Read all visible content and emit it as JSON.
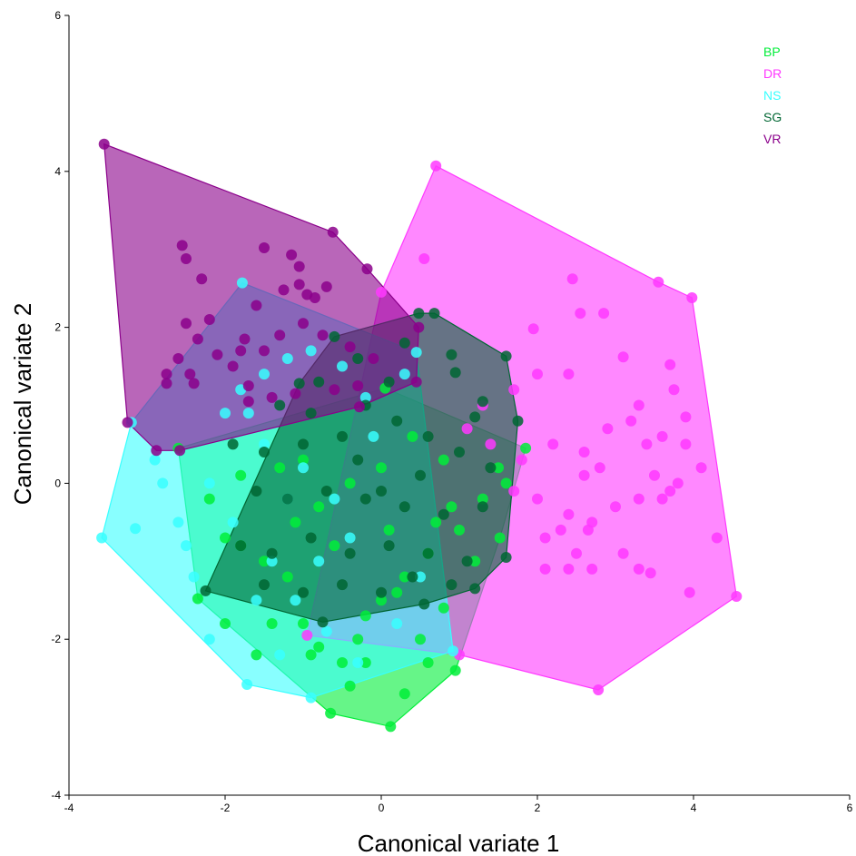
{
  "chart_data": {
    "type": "scatter",
    "title": "",
    "xlabel": "Canonical variate 1",
    "ylabel": "Canonical variate 2",
    "xlim": [
      -4,
      6
    ],
    "ylim": [
      -4,
      6
    ],
    "xticks": [
      -4,
      -2,
      0,
      2,
      4,
      6
    ],
    "yticks": [
      -4,
      -2,
      0,
      2,
      4,
      6
    ],
    "grid": false,
    "legend_position": "top-right",
    "series": [
      {
        "name": "BP",
        "color": "#00EE38",
        "hull": [
          [
            -2.6,
            0.45
          ],
          [
            0.05,
            1.22
          ],
          [
            1.85,
            0.45
          ],
          [
            1.52,
            -0.7
          ],
          [
            0.95,
            -2.4
          ],
          [
            0.12,
            -3.12
          ],
          [
            -0.65,
            -2.95
          ],
          [
            -2.35,
            -1.48
          ],
          [
            -2.6,
            0.45
          ]
        ],
        "points": [
          [
            -2.6,
            0.45
          ],
          [
            0.05,
            1.22
          ],
          [
            1.85,
            0.45
          ],
          [
            1.52,
            -0.7
          ],
          [
            0.95,
            -2.4
          ],
          [
            0.12,
            -3.12
          ],
          [
            -0.65,
            -2.95
          ],
          [
            -2.35,
            -1.48
          ],
          [
            -1.5,
            -1.0
          ],
          [
            -1.8,
            -0.8
          ],
          [
            -2.0,
            -0.7
          ],
          [
            -1.2,
            -1.2
          ],
          [
            -1.0,
            -1.8
          ],
          [
            -0.8,
            -2.1
          ],
          [
            -0.5,
            -2.3
          ],
          [
            -0.3,
            -2.0
          ],
          [
            0.0,
            -1.5
          ],
          [
            0.3,
            -1.2
          ],
          [
            0.6,
            -0.9
          ],
          [
            1.0,
            -0.6
          ],
          [
            1.3,
            -0.2
          ],
          [
            1.5,
            0.2
          ],
          [
            0.8,
            0.3
          ],
          [
            0.4,
            0.6
          ],
          [
            0.0,
            0.2
          ],
          [
            -0.4,
            0.0
          ],
          [
            -0.8,
            -0.3
          ],
          [
            -1.3,
            0.2
          ],
          [
            -1.8,
            0.1
          ],
          [
            -2.2,
            -0.2
          ],
          [
            -0.2,
            -1.7
          ],
          [
            0.5,
            -2.0
          ],
          [
            0.8,
            -1.6
          ],
          [
            -1.4,
            -1.8
          ],
          [
            -0.9,
            -2.2
          ],
          [
            -0.4,
            -2.6
          ],
          [
            0.3,
            -2.7
          ],
          [
            0.2,
            -1.4
          ],
          [
            0.9,
            -0.3
          ],
          [
            1.6,
            0.0
          ],
          [
            -2.0,
            -1.8
          ],
          [
            -1.6,
            -2.2
          ],
          [
            -1.1,
            -0.5
          ],
          [
            -0.6,
            -0.8
          ],
          [
            0.1,
            -0.6
          ],
          [
            0.7,
            -0.5
          ],
          [
            1.2,
            -1.0
          ],
          [
            -0.2,
            -2.3
          ],
          [
            0.6,
            -2.3
          ],
          [
            -1.0,
            0.3
          ]
        ]
      },
      {
        "name": "DR",
        "color": "#FF38FF",
        "hull": [
          [
            0.7,
            4.07
          ],
          [
            3.55,
            2.58
          ],
          [
            3.98,
            2.38
          ],
          [
            4.55,
            -1.45
          ],
          [
            2.78,
            -2.65
          ],
          [
            1.0,
            -2.2
          ],
          [
            -0.95,
            -1.95
          ],
          [
            0.0,
            2.45
          ],
          [
            0.7,
            4.07
          ]
        ],
        "points": [
          [
            0.7,
            4.07
          ],
          [
            3.55,
            2.58
          ],
          [
            3.98,
            2.38
          ],
          [
            4.55,
            -1.45
          ],
          [
            2.78,
            -2.65
          ],
          [
            1.0,
            -2.2
          ],
          [
            -0.95,
            -1.95
          ],
          [
            0.0,
            2.45
          ],
          [
            0.55,
            2.88
          ],
          [
            2.45,
            2.62
          ],
          [
            2.55,
            2.18
          ],
          [
            2.85,
            2.18
          ],
          [
            1.95,
            1.98
          ],
          [
            3.1,
            1.62
          ],
          [
            3.7,
            1.52
          ],
          [
            3.3,
            1.0
          ],
          [
            2.0,
            1.4
          ],
          [
            1.7,
            1.2
          ],
          [
            2.4,
            1.4
          ],
          [
            3.9,
            0.85
          ],
          [
            3.75,
            1.2
          ],
          [
            3.2,
            0.8
          ],
          [
            3.6,
            0.6
          ],
          [
            2.9,
            0.7
          ],
          [
            2.6,
            0.4
          ],
          [
            2.2,
            0.5
          ],
          [
            1.8,
            0.3
          ],
          [
            3.9,
            0.5
          ],
          [
            4.1,
            0.2
          ],
          [
            3.7,
            -0.1
          ],
          [
            3.5,
            0.1
          ],
          [
            3.8,
            0.0
          ],
          [
            3.3,
            -0.2
          ],
          [
            3.0,
            -0.3
          ],
          [
            2.7,
            -0.5
          ],
          [
            2.4,
            -0.4
          ],
          [
            2.0,
            -0.2
          ],
          [
            1.7,
            -0.1
          ],
          [
            2.5,
            -0.9
          ],
          [
            2.1,
            -0.7
          ],
          [
            2.7,
            -1.1
          ],
          [
            3.1,
            -0.9
          ],
          [
            3.3,
            -1.1
          ],
          [
            3.45,
            -1.15
          ],
          [
            3.95,
            -1.4
          ],
          [
            4.3,
            -0.7
          ],
          [
            2.4,
            -1.1
          ],
          [
            2.1,
            -1.1
          ],
          [
            2.6,
            0.1
          ],
          [
            1.4,
            0.5
          ],
          [
            1.1,
            0.7
          ],
          [
            1.3,
            1.0
          ],
          [
            3.4,
            0.5
          ],
          [
            2.8,
            0.2
          ],
          [
            2.3,
            -0.6
          ],
          [
            2.65,
            -0.6
          ],
          [
            3.6,
            -0.2
          ]
        ]
      },
      {
        "name": "NS",
        "color": "#38FFFF",
        "hull": [
          [
            -1.78,
            2.57
          ],
          [
            0.45,
            1.68
          ],
          [
            0.92,
            -2.15
          ],
          [
            -0.9,
            -2.75
          ],
          [
            -1.72,
            -2.58
          ],
          [
            -3.58,
            -0.7
          ],
          [
            -3.2,
            0.78
          ],
          [
            -1.78,
            2.57
          ]
        ],
        "points": [
          [
            -1.78,
            2.57
          ],
          [
            0.45,
            1.68
          ],
          [
            0.92,
            -2.15
          ],
          [
            -0.9,
            -2.75
          ],
          [
            -1.72,
            -2.58
          ],
          [
            -3.58,
            -0.7
          ],
          [
            -3.2,
            0.78
          ],
          [
            -3.15,
            -0.58
          ],
          [
            -2.2,
            -2.0
          ],
          [
            -2.5,
            -0.8
          ],
          [
            -2.6,
            -0.5
          ],
          [
            -2.9,
            0.3
          ],
          [
            -1.5,
            1.4
          ],
          [
            -1.2,
            1.6
          ],
          [
            -0.9,
            1.7
          ],
          [
            -0.5,
            1.5
          ],
          [
            -1.8,
            1.2
          ],
          [
            -2.0,
            0.9
          ],
          [
            -1.5,
            0.5
          ],
          [
            -1.0,
            0.2
          ],
          [
            -0.6,
            -0.2
          ],
          [
            -2.2,
            0.0
          ],
          [
            -1.9,
            -0.5
          ],
          [
            -1.4,
            -1.0
          ],
          [
            -1.1,
            -1.5
          ],
          [
            -0.7,
            -1.9
          ],
          [
            -0.3,
            -2.3
          ],
          [
            0.2,
            -1.8
          ],
          [
            0.5,
            -1.2
          ],
          [
            -0.8,
            -1.0
          ],
          [
            -1.6,
            -1.5
          ],
          [
            -2.4,
            -1.2
          ],
          [
            -2.8,
            0.0
          ],
          [
            -0.2,
            1.1
          ],
          [
            -0.1,
            0.6
          ],
          [
            -1.2,
            -0.2
          ],
          [
            -1.7,
            0.9
          ],
          [
            -0.4,
            -0.7
          ],
          [
            -1.3,
            -2.2
          ],
          [
            0.3,
            1.4
          ]
        ]
      },
      {
        "name": "SG",
        "color": "#006633",
        "hull": [
          [
            -1.05,
            1.28
          ],
          [
            -0.6,
            1.88
          ],
          [
            0.48,
            2.18
          ],
          [
            0.68,
            2.18
          ],
          [
            1.6,
            1.63
          ],
          [
            1.75,
            0.8
          ],
          [
            1.6,
            -0.95
          ],
          [
            1.2,
            -1.35
          ],
          [
            0.55,
            -1.55
          ],
          [
            -0.75,
            -1.78
          ],
          [
            -2.25,
            -1.38
          ],
          [
            -1.05,
            1.28
          ]
        ],
        "points": [
          [
            -1.05,
            1.28
          ],
          [
            -0.6,
            1.88
          ],
          [
            0.48,
            2.18
          ],
          [
            0.68,
            2.18
          ],
          [
            1.6,
            1.63
          ],
          [
            1.75,
            0.8
          ],
          [
            1.6,
            -0.95
          ],
          [
            1.2,
            -1.35
          ],
          [
            0.55,
            -1.55
          ],
          [
            -0.75,
            -1.78
          ],
          [
            -2.25,
            -1.38
          ],
          [
            0.9,
            1.65
          ],
          [
            0.95,
            1.42
          ],
          [
            1.3,
            1.05
          ],
          [
            1.2,
            0.85
          ],
          [
            0.3,
            1.8
          ],
          [
            -0.3,
            1.6
          ],
          [
            -0.8,
            1.3
          ],
          [
            -0.2,
            1.0
          ],
          [
            0.2,
            0.8
          ],
          [
            0.6,
            0.6
          ],
          [
            1.0,
            0.4
          ],
          [
            1.4,
            0.2
          ],
          [
            -0.5,
            0.6
          ],
          [
            -1.0,
            0.5
          ],
          [
            -1.5,
            0.4
          ],
          [
            -1.9,
            0.5
          ],
          [
            -1.6,
            -0.1
          ],
          [
            -1.2,
            -0.2
          ],
          [
            -0.7,
            -0.1
          ],
          [
            -0.2,
            -0.2
          ],
          [
            0.3,
            -0.3
          ],
          [
            0.8,
            -0.4
          ],
          [
            1.3,
            -0.3
          ],
          [
            -1.8,
            -0.8
          ],
          [
            -1.4,
            -0.9
          ],
          [
            -0.9,
            -0.7
          ],
          [
            -0.4,
            -0.9
          ],
          [
            0.1,
            -0.8
          ],
          [
            0.6,
            -0.9
          ],
          [
            1.1,
            -1.0
          ],
          [
            -1.5,
            -1.3
          ],
          [
            -1.0,
            -1.4
          ],
          [
            -0.5,
            -1.3
          ],
          [
            0.0,
            -1.4
          ],
          [
            0.4,
            -1.2
          ],
          [
            0.9,
            -1.3
          ],
          [
            -0.3,
            0.3
          ],
          [
            0.0,
            -0.1
          ],
          [
            0.5,
            0.1
          ],
          [
            -0.9,
            0.9
          ],
          [
            -1.3,
            1.0
          ],
          [
            0.1,
            1.3
          ]
        ]
      },
      {
        "name": "VR",
        "color": "#8B008B",
        "hull": [
          [
            -3.55,
            4.35
          ],
          [
            -0.62,
            3.22
          ],
          [
            -0.18,
            2.75
          ],
          [
            0.48,
            2.0
          ],
          [
            0.45,
            1.3
          ],
          [
            -0.28,
            0.98
          ],
          [
            -2.58,
            0.42
          ],
          [
            -2.88,
            0.42
          ],
          [
            -3.25,
            0.78
          ],
          [
            -3.55,
            4.35
          ]
        ],
        "points": [
          [
            -3.55,
            4.35
          ],
          [
            -0.62,
            3.22
          ],
          [
            -0.18,
            2.75
          ],
          [
            0.48,
            2.0
          ],
          [
            0.45,
            1.3
          ],
          [
            -0.28,
            0.98
          ],
          [
            -2.58,
            0.42
          ],
          [
            -2.88,
            0.42
          ],
          [
            -3.25,
            0.78
          ],
          [
            -2.55,
            3.05
          ],
          [
            -2.5,
            2.88
          ],
          [
            -1.5,
            3.02
          ],
          [
            -1.15,
            2.93
          ],
          [
            -1.05,
            2.78
          ],
          [
            -1.05,
            2.55
          ],
          [
            -0.7,
            2.52
          ],
          [
            -2.3,
            2.62
          ],
          [
            -1.25,
            2.48
          ],
          [
            -0.95,
            2.42
          ],
          [
            -0.85,
            2.38
          ],
          [
            -1.6,
            2.28
          ],
          [
            -2.35,
            1.85
          ],
          [
            -2.5,
            2.05
          ],
          [
            -2.2,
            2.1
          ],
          [
            -2.6,
            1.6
          ],
          [
            -2.1,
            1.65
          ],
          [
            -1.9,
            1.5
          ],
          [
            -1.75,
            1.85
          ],
          [
            -1.8,
            1.7
          ],
          [
            -1.5,
            1.7
          ],
          [
            -1.3,
            1.9
          ],
          [
            -1.0,
            2.05
          ],
          [
            -0.75,
            1.9
          ],
          [
            -0.4,
            1.75
          ],
          [
            -0.1,
            1.6
          ],
          [
            -2.75,
            1.4
          ],
          [
            -2.45,
            1.4
          ],
          [
            -1.7,
            1.25
          ],
          [
            -1.1,
            1.15
          ],
          [
            -0.6,
            1.2
          ],
          [
            -0.3,
            1.25
          ],
          [
            -2.75,
            1.28
          ],
          [
            -2.4,
            1.28
          ],
          [
            -1.7,
            1.05
          ],
          [
            -1.4,
            1.1
          ]
        ]
      }
    ]
  }
}
